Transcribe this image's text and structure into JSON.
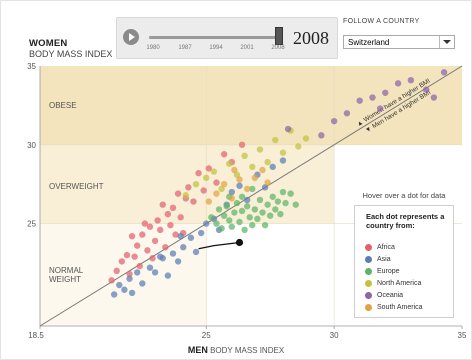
{
  "header": {
    "y_title": "WOMEN",
    "y_subtitle": "BODY MASS INDEX",
    "x_title": "MEN",
    "x_subtitle": "BODY MASS INDEX"
  },
  "controls": {
    "year": "2008",
    "slider_ticks": [
      "1980",
      "1987",
      "1994",
      "2001",
      "2008"
    ],
    "follow_label": "FOLLOW A COUNTRY",
    "selected_country": "Switzerland"
  },
  "zones": {
    "obese": "OBESE",
    "overweight": "OVERWEIGHT",
    "normal_1": "NORMAL",
    "normal_2": "WEIGHT"
  },
  "diagonal_labels": {
    "upper": "▲ Women have a higher BMI",
    "lower": "▼ Men have a higher BMI"
  },
  "hover_hint": "Hover over a dot for data",
  "legend": {
    "title": "Each dot represents a country from:",
    "items": [
      {
        "label": "Africa",
        "color": "#e2616d"
      },
      {
        "label": "Asia",
        "color": "#5b7db6"
      },
      {
        "label": "Europe",
        "color": "#5eb466"
      },
      {
        "label": "North America",
        "color": "#c2c23c"
      },
      {
        "label": "Oceania",
        "color": "#8e63a8"
      },
      {
        "label": "South America",
        "color": "#e3a242"
      }
    ]
  },
  "chart_data": {
    "type": "scatter",
    "xlabel": "MEN BODY MASS INDEX",
    "ylabel": "WOMEN BODY MASS INDEX",
    "xlim": [
      18.5,
      35
    ],
    "ylim": [
      18.5,
      35
    ],
    "x_ticks": [
      "18.5",
      "25",
      "30",
      "35"
    ],
    "y_ticks": [
      "25",
      "30",
      "35"
    ],
    "bands": [
      {
        "name": "obese",
        "min": 30,
        "max": 35,
        "color": "#f3e4bd"
      },
      {
        "name": "overweight",
        "min": 25,
        "max": 30,
        "color": "#f8efd6"
      },
      {
        "name": "normal",
        "min": 18.5,
        "max": 25,
        "color": "#fcf8ee"
      }
    ],
    "highlight": {
      "name": "Switzerland",
      "x": 26.3,
      "y": 23.8,
      "trail": [
        [
          24.7,
          23.4
        ],
        [
          25.3,
          23.6
        ],
        [
          26.3,
          23.8
        ]
      ]
    },
    "series": [
      {
        "name": "Africa",
        "color": "#e2616d",
        "points": [
          [
            21.5,
            22.0
          ],
          [
            21.7,
            22.6
          ],
          [
            21.9,
            23.0
          ],
          [
            22.0,
            21.8
          ],
          [
            22.2,
            22.9
          ],
          [
            22.3,
            23.6
          ],
          [
            22.4,
            22.3
          ],
          [
            22.5,
            24.3
          ],
          [
            22.7,
            23.3
          ],
          [
            22.8,
            24.8
          ],
          [
            22.9,
            22.8
          ],
          [
            23.0,
            23.9
          ],
          [
            23.1,
            25.2
          ],
          [
            23.2,
            24.6
          ],
          [
            23.3,
            26.2
          ],
          [
            23.4,
            23.5
          ],
          [
            23.5,
            25.6
          ],
          [
            23.6,
            24.9
          ],
          [
            23.7,
            26.0
          ],
          [
            23.8,
            24.3
          ],
          [
            23.9,
            26.9
          ],
          [
            24.0,
            25.4
          ],
          [
            24.1,
            24.4
          ],
          [
            24.3,
            27.3
          ],
          [
            24.5,
            26.4
          ],
          [
            24.7,
            28.2
          ],
          [
            24.9,
            27.1
          ],
          [
            25.1,
            28.5
          ],
          [
            25.4,
            27.6
          ],
          [
            25.7,
            29.4
          ],
          [
            26.0,
            28.9
          ],
          [
            26.4,
            30.0
          ],
          [
            22.1,
            24.2
          ],
          [
            22.6,
            25.0
          ],
          [
            21.3,
            21.4
          ],
          [
            24.2,
            26.6
          ]
        ]
      },
      {
        "name": "Asia",
        "color": "#5b7db6",
        "points": [
          [
            21.4,
            20.5
          ],
          [
            21.6,
            21.1
          ],
          [
            21.8,
            20.8
          ],
          [
            22.0,
            21.5
          ],
          [
            22.1,
            20.6
          ],
          [
            22.3,
            21.9
          ],
          [
            22.5,
            21.2
          ],
          [
            22.8,
            22.2
          ],
          [
            23.0,
            21.9
          ],
          [
            23.3,
            22.8
          ],
          [
            23.5,
            21.7
          ],
          [
            23.7,
            23.1
          ],
          [
            23.9,
            22.6
          ],
          [
            24.1,
            23.5
          ],
          [
            24.4,
            24.1
          ],
          [
            24.6,
            23.2
          ],
          [
            24.8,
            24.4
          ],
          [
            25.0,
            25.0
          ],
          [
            25.3,
            25.3
          ],
          [
            25.5,
            24.6
          ],
          [
            25.8,
            26.2
          ],
          [
            26.0,
            27.0
          ],
          [
            26.3,
            27.4
          ],
          [
            26.6,
            26.5
          ],
          [
            27.0,
            28.1
          ],
          [
            27.3,
            27.3
          ],
          [
            27.6,
            28.6
          ],
          [
            28.0,
            29.0
          ],
          [
            24.0,
            24.2
          ],
          [
            23.2,
            22.9
          ]
        ]
      },
      {
        "name": "Europe",
        "color": "#5eb466",
        "points": [
          [
            25.2,
            25.4
          ],
          [
            25.4,
            25.0
          ],
          [
            25.5,
            25.9
          ],
          [
            25.6,
            24.7
          ],
          [
            25.7,
            25.5
          ],
          [
            25.8,
            26.1
          ],
          [
            25.9,
            25.2
          ],
          [
            26.0,
            24.8
          ],
          [
            26.1,
            25.7
          ],
          [
            26.2,
            26.3
          ],
          [
            26.3,
            25.1
          ],
          [
            26.4,
            25.8
          ],
          [
            26.5,
            24.6
          ],
          [
            26.6,
            26.1
          ],
          [
            26.7,
            25.4
          ],
          [
            26.8,
            24.9
          ],
          [
            26.9,
            25.9
          ],
          [
            27.0,
            25.3
          ],
          [
            27.1,
            26.5
          ],
          [
            27.2,
            25.7
          ],
          [
            27.3,
            24.9
          ],
          [
            27.4,
            26.2
          ],
          [
            27.5,
            25.5
          ],
          [
            27.6,
            26.7
          ],
          [
            27.7,
            25.9
          ],
          [
            27.8,
            26.4
          ],
          [
            27.9,
            25.6
          ],
          [
            28.0,
            27.0
          ],
          [
            28.1,
            26.3
          ],
          [
            28.3,
            26.9
          ],
          [
            28.5,
            26.2
          ],
          [
            26.4,
            26.7
          ],
          [
            25.9,
            26.7
          ],
          [
            26.8,
            27.2
          ]
        ]
      },
      {
        "name": "North America",
        "color": "#c2c23c",
        "points": [
          [
            24.2,
            26.8
          ],
          [
            24.6,
            27.5
          ],
          [
            25.0,
            27.9
          ],
          [
            25.3,
            28.3
          ],
          [
            25.6,
            27.2
          ],
          [
            25.9,
            28.8
          ],
          [
            26.2,
            28.1
          ],
          [
            26.5,
            29.3
          ],
          [
            26.8,
            28.6
          ],
          [
            27.1,
            29.7
          ],
          [
            27.4,
            28.9
          ],
          [
            27.7,
            30.3
          ],
          [
            28.0,
            29.5
          ],
          [
            28.3,
            30.9
          ],
          [
            28.6,
            29.9
          ],
          [
            28.9,
            30.4
          ]
        ]
      },
      {
        "name": "Oceania",
        "color": "#8e63a8",
        "points": [
          [
            28.2,
            31.0
          ],
          [
            29.5,
            30.6
          ],
          [
            30.0,
            31.5
          ],
          [
            30.5,
            32.0
          ],
          [
            31.0,
            32.8
          ],
          [
            31.5,
            33.0
          ],
          [
            32.0,
            33.3
          ],
          [
            32.5,
            33.9
          ],
          [
            33.0,
            34.1
          ],
          [
            33.6,
            33.5
          ],
          [
            34.3,
            34.6
          ],
          [
            33.9,
            33.0
          ],
          [
            31.8,
            32.3
          ]
        ]
      },
      {
        "name": "South America",
        "color": "#e3a242",
        "points": [
          [
            25.1,
            26.4
          ],
          [
            25.4,
            26.9
          ],
          [
            25.7,
            27.5
          ],
          [
            26.0,
            26.6
          ],
          [
            26.3,
            27.8
          ],
          [
            26.6,
            27.2
          ],
          [
            26.9,
            27.9
          ],
          [
            27.2,
            28.4
          ],
          [
            27.4,
            27.6
          ],
          [
            26.1,
            28.4
          ]
        ]
      }
    ]
  }
}
